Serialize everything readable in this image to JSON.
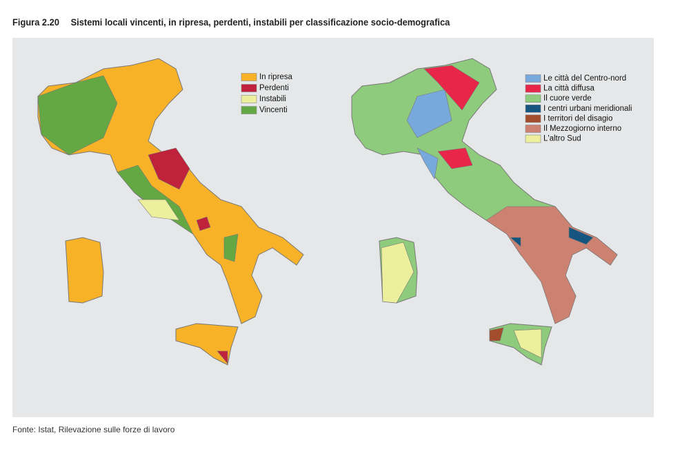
{
  "figure": {
    "label": "Figura 2.20",
    "title": "Sistemi locali vincenti, in ripresa, perdenti, instabili per classificazione socio-demografica"
  },
  "maps": [
    {
      "legend": [
        {
          "label": "In ripresa",
          "color": "#f7b228"
        },
        {
          "label": "Perdenti",
          "color": "#c0223b"
        },
        {
          "label": "Instabili",
          "color": "#ecef9c"
        },
        {
          "label": "Vincenti",
          "color": "#64a844"
        }
      ]
    },
    {
      "legend": [
        {
          "label": "Le città del Centro-nord",
          "color": "#78a9dc"
        },
        {
          "label": "La città diffusa",
          "color": "#e8264a"
        },
        {
          "label": "Il cuore verde",
          "color": "#8fcb7c"
        },
        {
          "label": "I centri urbani meridionali",
          "color": "#15557f"
        },
        {
          "label": "I territori del disagio",
          "color": "#a44d2c"
        },
        {
          "label": "Il Mezzogiorno interno",
          "color": "#cd8170"
        },
        {
          "label": "L'altro Sud",
          "color": "#ecef9c"
        }
      ]
    }
  ],
  "source": "Fonte: Istat, Rilevazione sulle forze di lavoro"
}
